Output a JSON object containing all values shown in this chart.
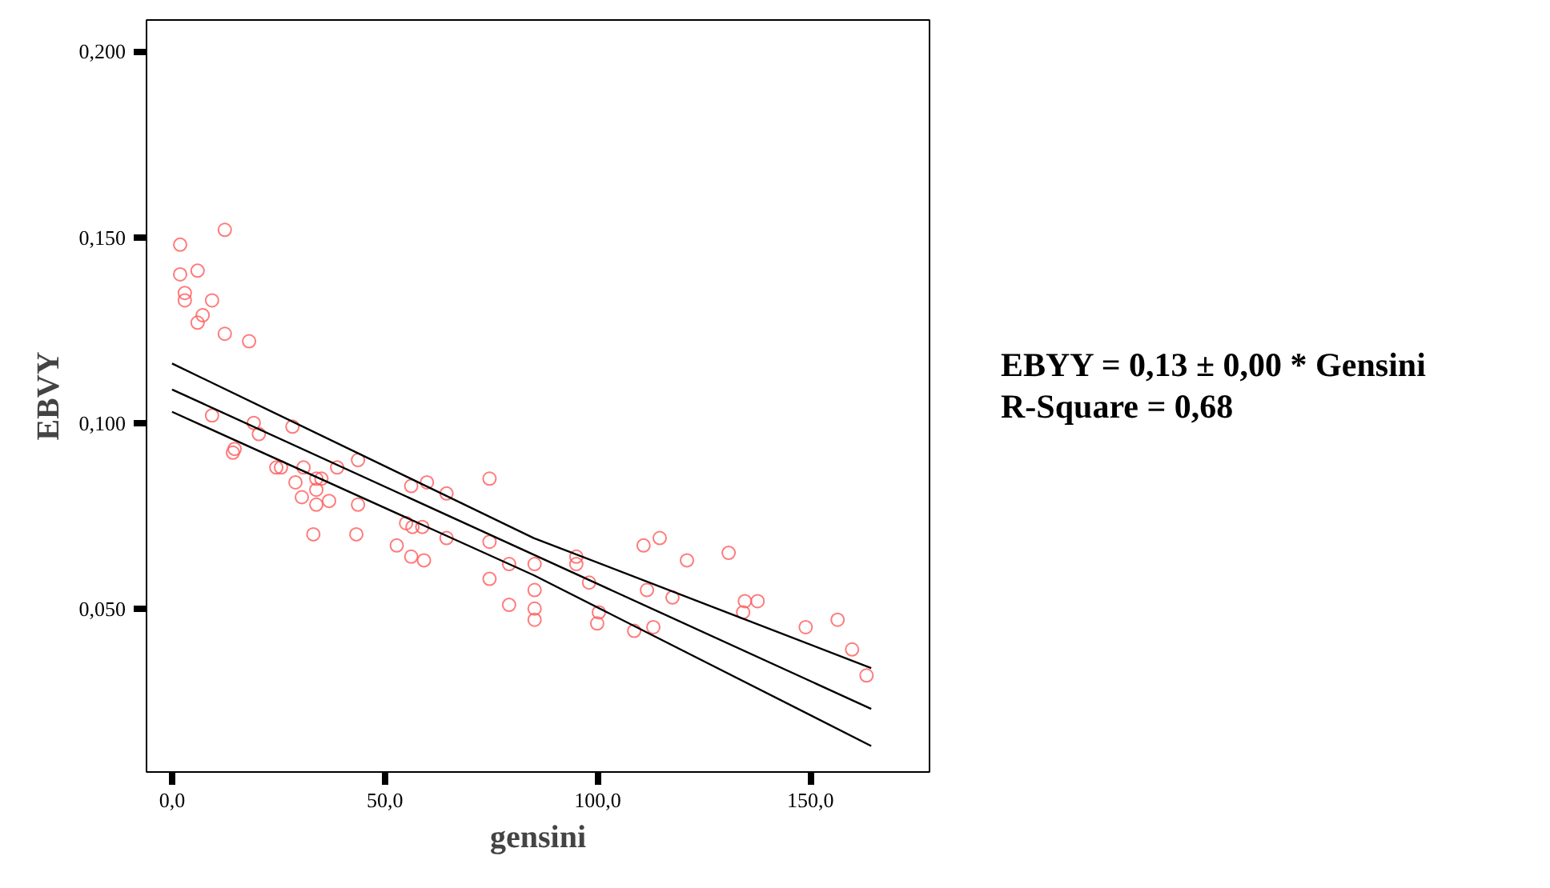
{
  "chart_data": {
    "type": "scatter",
    "xlabel": "gensini",
    "ylabel": "EBVY",
    "annotations": [
      "EBYY = 0,13 ± 0,00 * Gensini",
      "R-Square = 0,68"
    ],
    "xlim": [
      -6,
      178
    ],
    "ylim": [
      0.006,
      0.2085
    ],
    "xticks": [
      {
        "value": 0,
        "label": "0,0"
      },
      {
        "value": 50,
        "label": "50,0"
      },
      {
        "value": 100,
        "label": "100,0"
      },
      {
        "value": 150,
        "label": "150,0"
      }
    ],
    "yticks": [
      {
        "value": 0.05,
        "label": "0,050"
      },
      {
        "value": 0.1,
        "label": "0,100"
      },
      {
        "value": 0.15,
        "label": "0,150"
      },
      {
        "value": 0.2,
        "label": "0,200"
      }
    ],
    "grid": false,
    "series": [
      {
        "marker": "circle",
        "color": "#ff5a5a",
        "x": [
          1.9,
          12.4,
          1.9,
          6.0,
          3.0,
          3.0,
          9.4,
          7.2,
          6.0,
          12.4,
          18.1,
          9.4,
          19.2,
          20.4,
          28.3,
          14.7,
          14.3,
          24.5,
          25.6,
          30.9,
          38.8,
          43.7,
          56.2,
          59.9,
          64.5,
          74.6,
          29.0,
          33.9,
          35.1,
          30.5,
          33.9,
          36.9,
          33.9,
          43.7,
          33.2,
          43.3,
          55.0,
          56.5,
          58.8,
          52.8,
          56.2,
          59.2,
          64.5,
          74.6,
          79.2,
          74.6,
          79.2,
          85.2,
          85.2,
          85.2,
          85.2,
          95.0,
          95.0,
          98.0,
          100.3,
          99.9,
          110.8,
          114.6,
          121.0,
          111.6,
          117.6,
          130.8,
          134.6,
          134.2,
          137.6,
          108.6,
          113.1,
          148.9,
          156.4,
          159.8,
          163.2
        ],
        "values": [
          0.148,
          0.152,
          0.14,
          0.141,
          0.135,
          0.133,
          0.133,
          0.129,
          0.127,
          0.124,
          0.122,
          0.102,
          0.1,
          0.097,
          0.099,
          0.093,
          0.092,
          0.088,
          0.088,
          0.088,
          0.088,
          0.09,
          0.083,
          0.084,
          0.081,
          0.085,
          0.084,
          0.085,
          0.085,
          0.08,
          0.082,
          0.079,
          0.078,
          0.078,
          0.07,
          0.07,
          0.073,
          0.072,
          0.072,
          0.067,
          0.064,
          0.063,
          0.069,
          0.068,
          0.062,
          0.058,
          0.051,
          0.062,
          0.055,
          0.05,
          0.047,
          0.064,
          0.062,
          0.057,
          0.049,
          0.046,
          0.067,
          0.069,
          0.063,
          0.055,
          0.053,
          0.065,
          0.052,
          0.049,
          0.052,
          0.044,
          0.045,
          0.045,
          0.047,
          0.039,
          0.032
        ]
      },
      {
        "type": "line",
        "color": "#000000",
        "x": [
          0,
          85,
          164.3
        ],
        "values": [
          0.116,
          0.069,
          0.034
        ]
      },
      {
        "type": "line",
        "color": "#000000",
        "x": [
          0,
          164.3
        ],
        "values": [
          0.109,
          0.023
        ]
      },
      {
        "type": "line",
        "color": "#000000",
        "x": [
          0,
          85,
          164.3
        ],
        "values": [
          0.103,
          0.059,
          0.013
        ]
      }
    ]
  }
}
